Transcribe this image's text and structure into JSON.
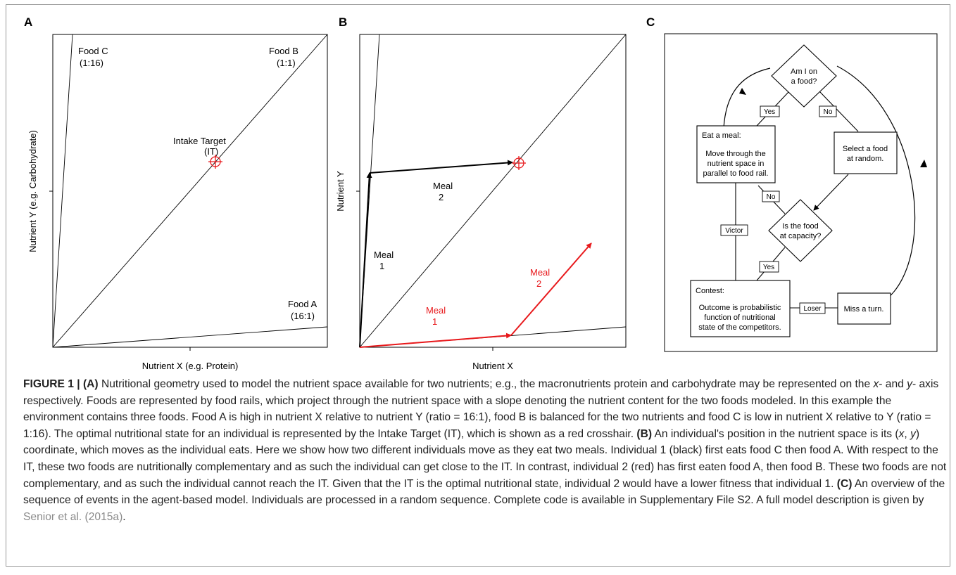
{
  "panelA": {
    "letter": "A",
    "ylabel": "Nutrient Y (e.g. Carbohydrate)",
    "xlabel": "Nutrient X (e.g. Protein)",
    "foodC": {
      "name": "Food C",
      "ratio": "(1:16)"
    },
    "foodB": {
      "name": "Food B",
      "ratio": "(1:1)"
    },
    "foodA": {
      "name": "Food A",
      "ratio": "(16:1)"
    },
    "target": {
      "line1": "Intake Target",
      "line2": "(IT)"
    }
  },
  "panelB": {
    "letter": "B",
    "ylabel": "Nutrient Y",
    "xlabel": "Nutrient X",
    "black_meal1": {
      "line1": "Meal",
      "line2": "1"
    },
    "black_meal2": {
      "line1": "Meal",
      "line2": "2"
    },
    "red_meal1": {
      "line1": "Meal",
      "line2": "1"
    },
    "red_meal2": {
      "line1": "Meal",
      "line2": "2"
    },
    "colors": {
      "individual1": "#000000",
      "individual2": "#e8191c",
      "target": "#e8191c"
    }
  },
  "panelC": {
    "letter": "C",
    "diamond_top": {
      "line1": "Am I on",
      "line2": "a food?"
    },
    "diamond_mid": {
      "line1": "Is the food",
      "line2": "at capacity?"
    },
    "eat_box": {
      "title": "Eat a meal:",
      "line1": "Move through the",
      "line2": "nutrient space in",
      "line3": "parallel to food rail."
    },
    "select_box": {
      "line1": "Select a food",
      "line2": "at random."
    },
    "contest_box": {
      "title": "Contest:",
      "line1": "Outcome is probabilistic",
      "line2": "function of nutritional",
      "line3": "state of the competitors."
    },
    "miss_box": {
      "line1": "Miss a turn."
    },
    "labels": {
      "yes_top": "Yes",
      "no_top": "No",
      "no_mid": "No",
      "yes_mid": "Yes",
      "victor": "Victor",
      "loser": "Loser"
    }
  },
  "caption": {
    "fig_label": "FIGURE 1 | ",
    "a_label": "(A)",
    "a_text1": " Nutritional geometry used to model the nutrient space available for two nutrients; e.g., the macronutrients protein and carbohydrate may be represented on the ",
    "a_x": "x",
    "a_text2": "- and ",
    "a_y": "y",
    "a_text3": "- axis respectively. Foods are represented by food rails, which project through the nutrient space with a slope denoting the nutrient content for the two foods modeled. In this example the environment contains three foods. Food A is high in nutrient X relative to nutrient Y (ratio = 16:1), food B is balanced for the two nutrients and food C is low in nutrient X relative to Y (ratio = 1:16). The optimal nutritional state for an individual is represented by the Intake Target (IT), which is shown as a red crosshair. ",
    "b_label": "(B)",
    "b_text1": " An individual's position in the nutrient space is its (",
    "b_x": "x",
    "b_comma": ", ",
    "b_y": "y",
    "b_text2": ") coordinate, which moves as the individual eats. Here we show how two different individuals move as they eat two meals. Individual 1 (black) first eats food C then food A. With respect to the IT, these two foods are nutritionally complementary and as such the individual can get close to the IT. In contrast, individual 2 (red) has first eaten food A, then food B. These two foods are not complementary, and as such the individual cannot reach the IT. Given that the IT is the optimal nutritional state, individual 2 would have a lower fitness that individual 1. ",
    "c_label": "(C)",
    "c_text1": " An overview of the sequence of events in the agent-based model. Individuals are processed in a random sequence. Complete code is available in Supplementary File S2. A full model description is given by ",
    "c_ref": "Senior et al. (2015a)",
    "c_end": "."
  }
}
